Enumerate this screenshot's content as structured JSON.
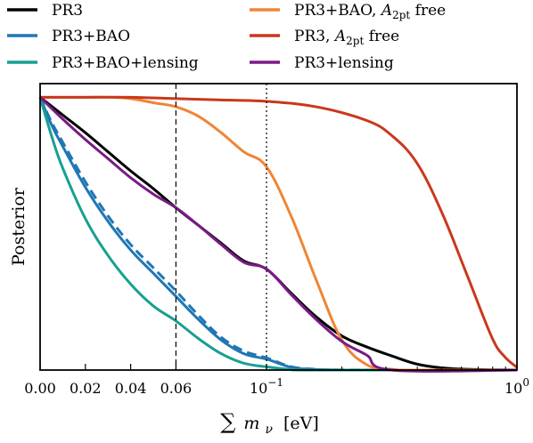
{
  "chart_data": {
    "type": "line",
    "title": "",
    "xlabel": "∑ m_ν [eV]",
    "xlabel_parts": {
      "sum": "∑",
      "m": "m",
      "nu": "ν",
      "unit": "[eV]"
    },
    "ylabel": "Posterior",
    "x_scale": "linear from 0 to 0.1, logarithmic from 0.1 to 1",
    "xlim": [
      0,
      1
    ],
    "ylim": [
      0,
      1.05
    ],
    "x_ticks": [
      {
        "value": 0.0,
        "label": "0.00"
      },
      {
        "value": 0.02,
        "label": "0.02"
      },
      {
        "value": 0.04,
        "label": "0.04"
      },
      {
        "value": 0.06,
        "label": "0.06"
      }
    ],
    "x_ticks_log": [
      {
        "value": 0.1,
        "base": "10",
        "exp": "−1"
      },
      {
        "value": 1,
        "base": "10",
        "exp": "0"
      }
    ],
    "y_ticks": false,
    "grid": false,
    "legend_position": "above plot, two columns",
    "reference_lines": [
      {
        "x": 0.06,
        "style": "dashed",
        "color": "#000000"
      },
      {
        "x": 0.1,
        "style": "dotted",
        "color": "#000000"
      }
    ],
    "series": [
      {
        "name": "PR3",
        "color": "#000000",
        "style": "solid",
        "x": [
          0,
          0.01,
          0.02,
          0.03,
          0.04,
          0.05,
          0.06,
          0.07,
          0.08,
          0.09,
          0.1,
          0.126,
          0.158,
          0.2,
          0.251,
          0.316,
          0.398,
          0.5,
          0.631,
          0.794,
          1.0
        ],
        "y": [
          1.0,
          0.935,
          0.87,
          0.8,
          0.73,
          0.665,
          0.595,
          0.53,
          0.465,
          0.4,
          0.37,
          0.28,
          0.195,
          0.125,
          0.085,
          0.052,
          0.022,
          0.008,
          0.003,
          0.001,
          0.0
        ]
      },
      {
        "name": "PR3+BAO",
        "color": "#1f77b4",
        "style": "solid",
        "x": [
          0,
          0.005,
          0.01,
          0.02,
          0.03,
          0.04,
          0.05,
          0.06,
          0.07,
          0.08,
          0.09,
          0.1,
          0.126,
          0.158,
          0.2,
          0.251,
          1.0
        ],
        "y": [
          1.0,
          0.9,
          0.82,
          0.67,
          0.545,
          0.44,
          0.355,
          0.27,
          0.185,
          0.11,
          0.06,
          0.04,
          0.01,
          0.002,
          0.0005,
          0.0,
          0.0
        ]
      },
      {
        "name": "PR3+BAO (dashed)",
        "color": "#1f77b4",
        "style": "dashed",
        "x": [
          0,
          0.005,
          0.01,
          0.02,
          0.03,
          0.04,
          0.05,
          0.06,
          0.07,
          0.08,
          0.09,
          0.1,
          0.126,
          0.158,
          0.2,
          1.0
        ],
        "y": [
          1.0,
          0.91,
          0.835,
          0.69,
          0.565,
          0.46,
          0.375,
          0.29,
          0.2,
          0.12,
          0.07,
          0.045,
          0.012,
          0.003,
          0.0005,
          0.0
        ]
      },
      {
        "name": "PR3+BAO+lensing",
        "color": "#17a091",
        "style": "solid",
        "x": [
          0,
          0.005,
          0.01,
          0.02,
          0.03,
          0.04,
          0.05,
          0.06,
          0.07,
          0.08,
          0.09,
          0.1,
          0.126,
          0.158,
          1.0
        ],
        "y": [
          1.0,
          0.86,
          0.74,
          0.555,
          0.42,
          0.315,
          0.235,
          0.18,
          0.115,
          0.06,
          0.025,
          0.012,
          0.002,
          0.0,
          0.0
        ]
      },
      {
        "name": "PR3+BAO, A_2pt free",
        "color": "#ef8535",
        "style": "solid",
        "x": [
          0,
          0.01,
          0.02,
          0.03,
          0.04,
          0.05,
          0.06,
          0.07,
          0.08,
          0.09,
          0.1,
          0.126,
          0.158,
          0.2,
          0.251,
          0.316,
          0.398,
          1.0
        ],
        "y": [
          1.0,
          1.0,
          1.0,
          1.0,
          0.995,
          0.98,
          0.965,
          0.93,
          0.87,
          0.8,
          0.745,
          0.56,
          0.33,
          0.11,
          0.02,
          0.003,
          0.0,
          0.0
        ]
      },
      {
        "name": "PR3, A_2pt free",
        "color": "#c9381c",
        "style": "solid",
        "x": [
          0,
          0.02,
          0.04,
          0.06,
          0.08,
          0.1,
          0.158,
          0.251,
          0.316,
          0.398,
          0.5,
          0.631,
          0.794,
          0.891,
          1.0
        ],
        "y": [
          1.0,
          1.0,
          1.0,
          0.995,
          0.99,
          0.985,
          0.965,
          0.915,
          0.86,
          0.76,
          0.58,
          0.35,
          0.12,
          0.05,
          0.01
        ]
      },
      {
        "name": "PR3+lensing",
        "color": "#7a1a86",
        "style": "solid",
        "x": [
          0,
          0.01,
          0.02,
          0.03,
          0.04,
          0.05,
          0.06,
          0.07,
          0.08,
          0.09,
          0.1,
          0.126,
          0.158,
          0.2,
          0.251,
          0.316,
          1.0
        ],
        "y": [
          1.0,
          0.92,
          0.845,
          0.775,
          0.705,
          0.645,
          0.595,
          0.53,
          0.46,
          0.395,
          0.37,
          0.275,
          0.185,
          0.105,
          0.055,
          0.0,
          0.0
        ]
      }
    ],
    "legend": [
      {
        "label": "PR3",
        "color": "#000000",
        "column": 0,
        "row": 0
      },
      {
        "label": "PR3+BAO",
        "color": "#1f77b4",
        "column": 0,
        "row": 1
      },
      {
        "label": "PR3+BAO+lensing",
        "color": "#17a091",
        "column": 0,
        "row": 2
      },
      {
        "label_main": "PR3+BAO, ",
        "label_var": "A",
        "label_sub": "2pt",
        "label_tail": " free",
        "color": "#ef8535",
        "column": 1,
        "row": 0
      },
      {
        "label_main": "PR3, ",
        "label_var": "A",
        "label_sub": "2pt",
        "label_tail": " free",
        "color": "#c9381c",
        "column": 1,
        "row": 1
      },
      {
        "label": "PR3+lensing",
        "color": "#7a1a86",
        "column": 1,
        "row": 2
      }
    ]
  }
}
